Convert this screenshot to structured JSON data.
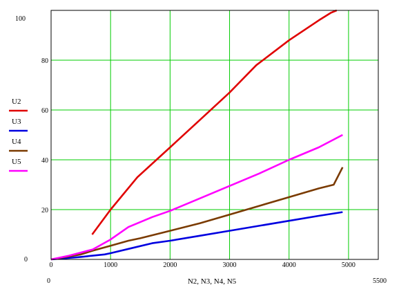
{
  "chart_data": {
    "type": "line",
    "title": "",
    "xlabel": "N2, N3, N4, N5",
    "ylabel": "",
    "xlim": [
      0,
      5500
    ],
    "ylim": [
      0,
      100
    ],
    "grid": true,
    "legend_position": "left",
    "x_ticks": [
      0,
      1000,
      2000,
      3000,
      4000,
      5000
    ],
    "x_tick_labels": [
      "0",
      "1000",
      "2000",
      "3000",
      "4000",
      "5000"
    ],
    "y_ticks": [
      20,
      40,
      60,
      80
    ],
    "y_tick_labels": [
      "20",
      "40",
      "60",
      "80"
    ],
    "x_min_label": "0",
    "x_max_label": "5500",
    "y_min_label": "0",
    "y_max_label": "100",
    "series": [
      {
        "name": "U2",
        "color": "#e00000",
        "x": [
          690,
          1000,
          1450,
          2000,
          2500,
          3000,
          3450,
          4000,
          4500,
          4700,
          4800
        ],
        "y": [
          10,
          20,
          33,
          45,
          56,
          67,
          78,
          88,
          96,
          99,
          100
        ]
      },
      {
        "name": "U3",
        "color": "#0000e0",
        "x": [
          0,
          500,
          900,
          1000,
          1350,
          1700,
          2000,
          2500,
          3000,
          3500,
          4000,
          4500,
          4900
        ],
        "y": [
          0,
          1,
          2,
          2.5,
          4.5,
          6.5,
          7.5,
          9.5,
          11.5,
          13.5,
          15.5,
          17.5,
          19
        ]
      },
      {
        "name": "U4",
        "color": "#7a3a00",
        "x": [
          0,
          500,
          700,
          1000,
          1300,
          1500,
          2000,
          2500,
          3000,
          3500,
          4000,
          4500,
          4750,
          4900
        ],
        "y": [
          0,
          2,
          3.5,
          5.5,
          7.5,
          8.5,
          11.5,
          14.5,
          18,
          21.5,
          25,
          28.5,
          30,
          37
        ]
      },
      {
        "name": "U5",
        "color": "#ff00ff",
        "x": [
          0,
          300,
          700,
          1000,
          1300,
          1700,
          2000,
          2500,
          3000,
          3500,
          4000,
          4500,
          4900
        ],
        "y": [
          0,
          1.5,
          4,
          8,
          13,
          17,
          19.5,
          24.5,
          29.5,
          34.5,
          40,
          45,
          50
        ]
      }
    ]
  }
}
